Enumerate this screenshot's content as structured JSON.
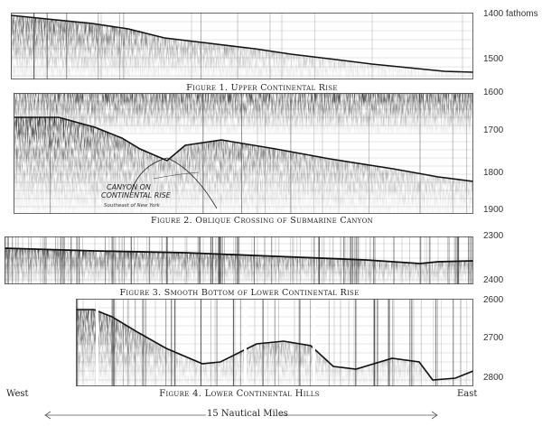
{
  "figures": [
    {
      "caption": "Figure 1. Upper Continental Rise",
      "depth_labels": [
        "1400 fathoms",
        "1500"
      ]
    },
    {
      "caption": "Figure 2. Oblique Crossing of Submarine Canyon",
      "depth_labels": [
        "1600",
        "1700",
        "1800",
        "1900"
      ],
      "annotation": [
        "CANYON ON",
        "CONTINENTAL RISE"
      ],
      "annotation_small": "Southeast of New York"
    },
    {
      "caption": "Figure 3. Smooth Bottom of Lower Continental Rise",
      "depth_labels": [
        "2300",
        "2400"
      ]
    },
    {
      "caption": "Figure 4. Lower Continental Hills",
      "depth_labels": [
        "2600",
        "2700",
        "2800"
      ]
    }
  ],
  "direction": {
    "west": "West",
    "east": "East"
  },
  "scale_bar": {
    "label": "15 Nautical Miles"
  },
  "colors": {
    "ink": "#1a1a1a",
    "paper": "#ffffff"
  }
}
